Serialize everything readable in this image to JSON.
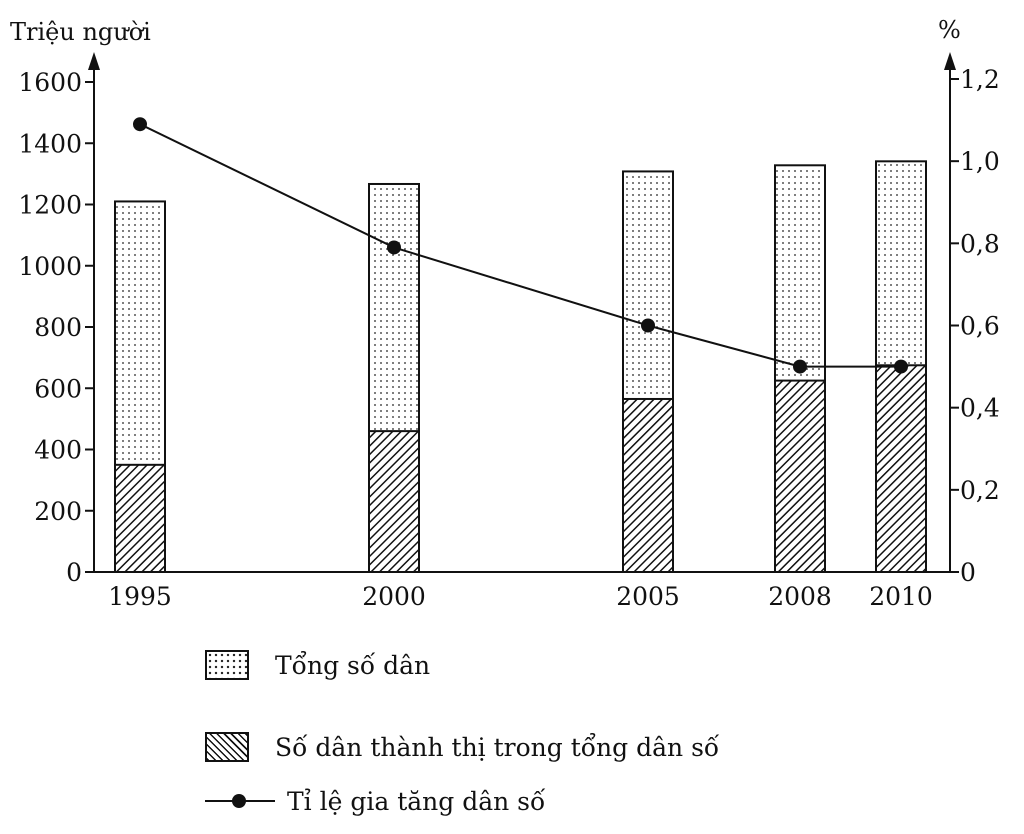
{
  "chart_data": {
    "type": "bar+line",
    "categories": [
      "1995",
      "2000",
      "2005",
      "2008",
      "2010"
    ],
    "left_axis": {
      "label": "Triệu người",
      "ylim": [
        0,
        1600
      ],
      "ticks": [
        0,
        200,
        400,
        600,
        800,
        1000,
        1200,
        1400,
        1600
      ],
      "tick_labels": [
        "0",
        "200",
        "400",
        "600",
        "800",
        "1000",
        "1200",
        "1400",
        "1600"
      ]
    },
    "right_axis": {
      "label": "%",
      "ylim": [
        0,
        1.2
      ],
      "ticks": [
        0,
        0.2,
        0.4,
        0.6,
        0.8,
        1.0,
        1.2
      ],
      "tick_labels": [
        "0",
        "0,2",
        "0,4",
        "0,6",
        "0,8",
        "1,0",
        "1,2"
      ]
    },
    "series": [
      {
        "name": "Tổng số dân",
        "kind": "bar",
        "pattern": "dots",
        "axis": "left",
        "values": [
          1210,
          1267,
          1308,
          1328,
          1341
        ]
      },
      {
        "name": "Số dân thành thị trong tổng dân số",
        "kind": "bar",
        "pattern": "hatch",
        "axis": "left",
        "values": [
          350,
          460,
          565,
          625,
          675
        ]
      },
      {
        "name": "Tỉ lệ gia tăng dân số",
        "kind": "line",
        "axis": "right",
        "values": [
          1.09,
          0.79,
          0.6,
          0.5,
          0.5
        ]
      }
    ],
    "grid": false,
    "legend_position": "bottom"
  }
}
